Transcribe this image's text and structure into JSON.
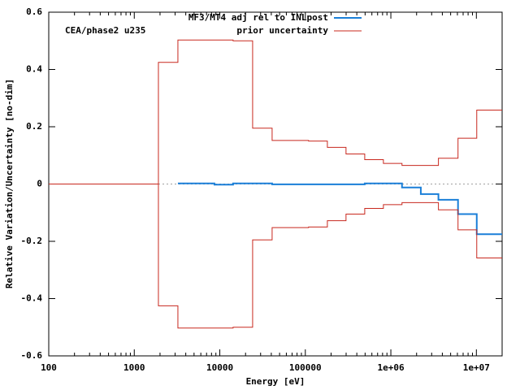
{
  "chart_data": {
    "type": "step",
    "annotation": "CEA/phase2 u235",
    "xlabel": "Energy [eV]",
    "ylabel": "Relative Variation/Uncertainty [no-dim]",
    "xlog": true,
    "xlim": [
      100,
      20000000
    ],
    "ylim": [
      -0.6,
      0.6
    ],
    "xticks": [
      100,
      1000,
      10000,
      100000,
      {
        "value": 1000000,
        "label": "1e+06"
      },
      {
        "value": 10000000,
        "label": "1e+07"
      }
    ],
    "yticks": [
      -0.6,
      -0.4,
      -0.2,
      0,
      0.2,
      0.4,
      0.6
    ],
    "zero_line": true,
    "legend": "top-center",
    "series": [
      {
        "name": "MF3/MT4 adj rel to INLpost",
        "color": "#1a7fd8",
        "x": [
          3236,
          8650,
          14300,
          40900,
          495000,
          1350000,
          2240000,
          3600000,
          6100000,
          10100000,
          20000000
        ],
        "values": [
          0.002,
          -0.002,
          0.002,
          -0.001,
          0.002,
          -0.012,
          -0.035,
          -0.055,
          -0.105,
          -0.175,
          -0.175
        ]
      },
      {
        "name": "prior uncertainty",
        "color": "#c8281e",
        "x": [
          100,
          1915,
          3236,
          14300,
          24200,
          40900,
          109000,
          181000,
          299000,
          495000,
          818000,
          1350000,
          2240000,
          3600000,
          6100000,
          10100000,
          20000000
        ],
        "upper": [
          0,
          0.425,
          0.503,
          0.5,
          0.195,
          0.152,
          0.15,
          0.128,
          0.105,
          0.085,
          0.072,
          0.065,
          0.065,
          0.09,
          0.16,
          0.258,
          0.258
        ],
        "lower": [
          0,
          -0.425,
          -0.503,
          -0.5,
          -0.195,
          -0.152,
          -0.15,
          -0.128,
          -0.105,
          -0.085,
          -0.072,
          -0.065,
          -0.065,
          -0.09,
          -0.16,
          -0.258,
          -0.258
        ]
      }
    ]
  }
}
